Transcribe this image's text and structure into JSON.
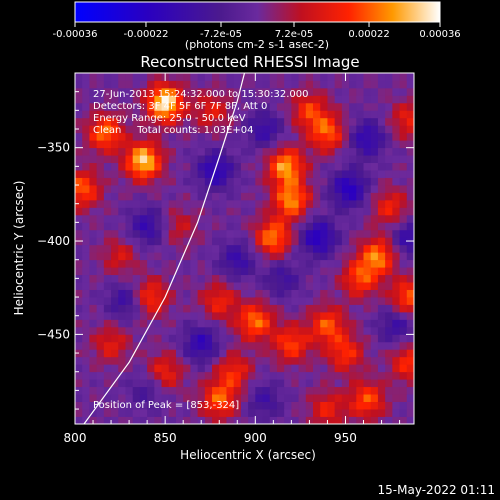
{
  "chart_data": {
    "type": "heatmap",
    "title": "Reconstructed RHESSI Image",
    "xlabel": "Heliocentric X (arcsec)",
    "ylabel": "Heliocentric Y (arcsec)",
    "xlim": [
      800,
      988
    ],
    "ylim": [
      -498,
      -310
    ],
    "x_ticks": [
      800,
      850,
      900,
      950
    ],
    "y_ticks": [
      -350,
      -400,
      -450
    ],
    "colorbar": {
      "label": "(photons cm-2 s-1 asec-2)",
      "range": [
        -0.00036,
        0.00036
      ],
      "ticks": [
        "-0.00036",
        "-0.00022",
        "-7.2e-05",
        "7.2e-05",
        "0.00022",
        "0.00036"
      ],
      "tick_values": [
        -0.00036,
        -0.00022,
        -7.2e-05,
        7.2e-05,
        0.00022,
        0.00036
      ]
    },
    "annotations": [
      "27-Jun-2013 15:24:32.000 to 15:30:32.000",
      "Detectors: 3F 4F 5F 6F 7F 8F, Att 0",
      "Energy Range: 25.0 - 50.0 keV",
      "Clean     Total counts: 1.03E+04"
    ],
    "peak_label": "Position of Peak = [853,-324]",
    "peak_position": [
      853,
      -324
    ],
    "limb_curve": [
      [
        805,
        -498
      ],
      [
        830,
        -465
      ],
      [
        850,
        -430
      ],
      [
        868,
        -390
      ],
      [
        880,
        -355
      ],
      [
        890,
        -325
      ],
      [
        894,
        -310
      ]
    ],
    "sources": [
      {
        "x": 850,
        "y": -326,
        "value": 0.00036
      },
      {
        "x": 838,
        "y": -357,
        "value": 0.00033
      },
      {
        "x": 817,
        "y": -342,
        "value": 0.00024
      },
      {
        "x": 804,
        "y": -372,
        "value": 0.00022
      },
      {
        "x": 876,
        "y": -330,
        "value": 0.00014
      },
      {
        "x": 917,
        "y": -360,
        "value": 0.00028
      },
      {
        "x": 920,
        "y": -378,
        "value": 0.00026
      },
      {
        "x": 910,
        "y": -398,
        "value": 0.00025
      },
      {
        "x": 940,
        "y": -342,
        "value": 0.00022
      },
      {
        "x": 930,
        "y": -330,
        "value": 0.00018
      },
      {
        "x": 968,
        "y": -408,
        "value": 0.00025
      },
      {
        "x": 958,
        "y": -420,
        "value": 0.0002
      },
      {
        "x": 985,
        "y": -430,
        "value": 0.00022
      },
      {
        "x": 975,
        "y": -382,
        "value": 0.00016
      },
      {
        "x": 940,
        "y": -445,
        "value": 0.00021
      },
      {
        "x": 950,
        "y": -460,
        "value": 0.00018
      },
      {
        "x": 900,
        "y": -443,
        "value": 0.00024
      },
      {
        "x": 920,
        "y": -455,
        "value": 0.0002
      },
      {
        "x": 880,
        "y": -432,
        "value": 0.00016
      },
      {
        "x": 888,
        "y": -470,
        "value": 0.00017
      },
      {
        "x": 880,
        "y": -485,
        "value": 0.00022
      },
      {
        "x": 962,
        "y": -485,
        "value": 0.00021
      },
      {
        "x": 940,
        "y": -490,
        "value": 0.00015
      },
      {
        "x": 985,
        "y": -465,
        "value": 0.00018
      },
      {
        "x": 985,
        "y": -335,
        "value": 0.00015
      },
      {
        "x": 842,
        "y": -430,
        "value": 0.00019
      },
      {
        "x": 850,
        "y": -470,
        "value": 0.00016
      },
      {
        "x": 825,
        "y": -408,
        "value": 0.00012
      },
      {
        "x": 820,
        "y": -455,
        "value": 0.00014
      },
      {
        "x": 858,
        "y": -392,
        "value": 0.0001
      },
      {
        "x": 878,
        "y": -362,
        "value": -0.0002
      },
      {
        "x": 935,
        "y": -398,
        "value": -0.00022
      },
      {
        "x": 952,
        "y": -372,
        "value": -0.00022
      },
      {
        "x": 962,
        "y": -345,
        "value": -0.00018
      },
      {
        "x": 985,
        "y": -398,
        "value": -0.00016
      },
      {
        "x": 890,
        "y": -410,
        "value": -0.00015
      },
      {
        "x": 915,
        "y": -420,
        "value": -0.00012
      },
      {
        "x": 870,
        "y": -455,
        "value": -0.00018
      },
      {
        "x": 828,
        "y": -432,
        "value": -0.00014
      },
      {
        "x": 840,
        "y": -392,
        "value": -0.00016
      },
      {
        "x": 905,
        "y": -340,
        "value": -0.00015
      },
      {
        "x": 978,
        "y": -445,
        "value": -0.00014
      },
      {
        "x": 840,
        "y": -480,
        "value": -0.0001
      },
      {
        "x": 905,
        "y": -485,
        "value": -0.00012
      }
    ]
  },
  "footer": {
    "date": "15-May-2022 01:11"
  }
}
